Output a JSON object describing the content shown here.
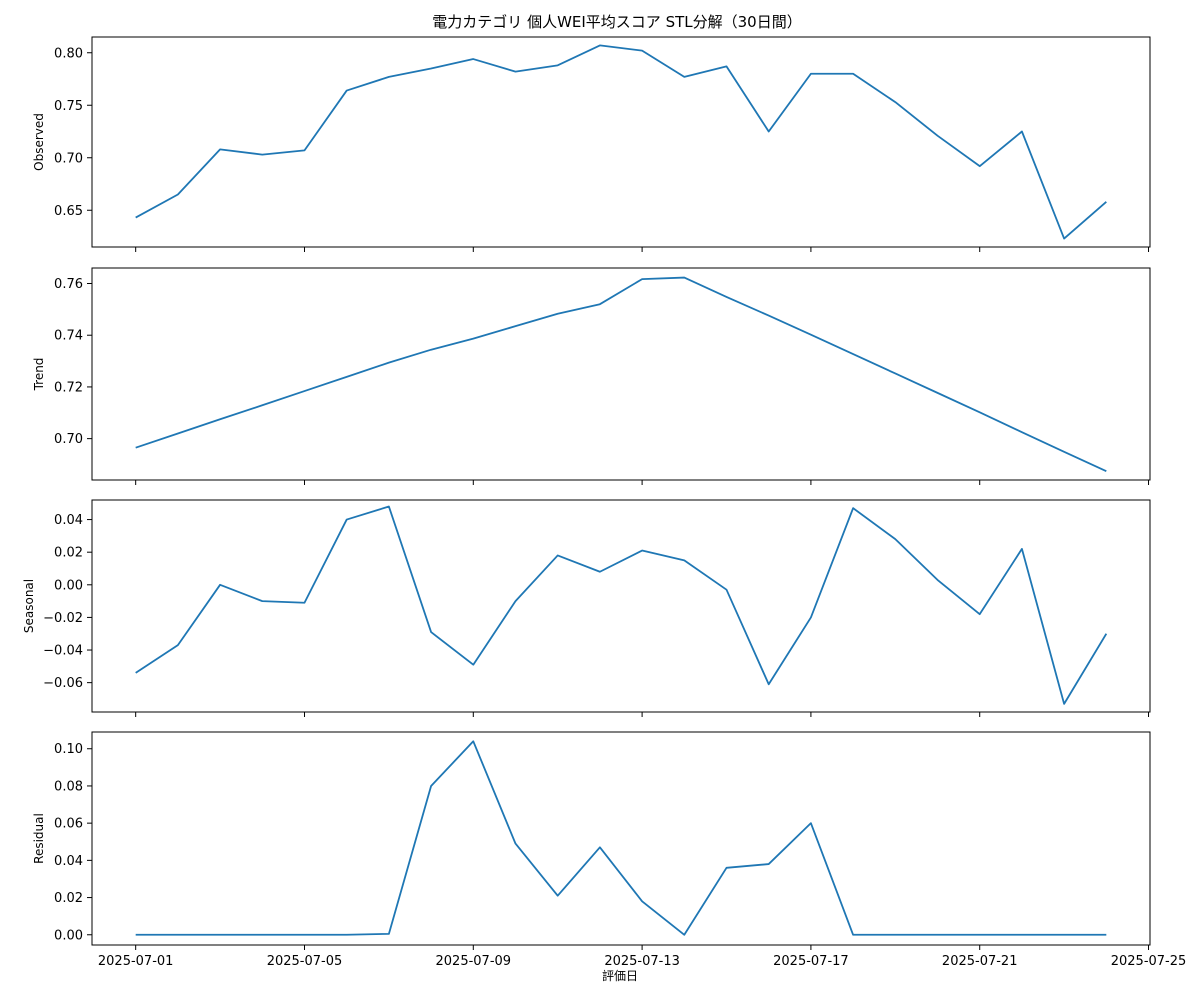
{
  "chart_data": {
    "type": "line",
    "title": "電力カテゴリ 個人WEI平均スコア STL分解（30日間）",
    "xlabel": "評価日",
    "x": [
      "2025-07-01",
      "2025-07-02",
      "2025-07-03",
      "2025-07-04",
      "2025-07-05",
      "2025-07-06",
      "2025-07-07",
      "2025-07-08",
      "2025-07-09",
      "2025-07-10",
      "2025-07-11",
      "2025-07-12",
      "2025-07-13",
      "2025-07-14",
      "2025-07-15",
      "2025-07-16",
      "2025-07-17",
      "2025-07-18",
      "2025-07-19",
      "2025-07-20",
      "2025-07-21",
      "2025-07-22",
      "2025-07-23",
      "2025-07-24"
    ],
    "x_ticks": [
      "2025-07-01",
      "2025-07-05",
      "2025-07-09",
      "2025-07-13",
      "2025-07-17",
      "2025-07-21",
      "2025-07-25"
    ],
    "color": "#1f77b4",
    "panels": [
      {
        "ylabel": "Observed",
        "ylim": [
          0.615,
          0.815
        ],
        "yticks": [
          0.65,
          0.7,
          0.75,
          0.8
        ],
        "ytick_labels": [
          "0.65",
          "0.70",
          "0.75",
          "0.80"
        ],
        "values": [
          0.643,
          0.665,
          0.708,
          0.703,
          0.707,
          0.764,
          0.777,
          0.785,
          0.794,
          0.782,
          0.788,
          0.807,
          0.802,
          0.777,
          0.787,
          0.725,
          0.78,
          0.78,
          0.753,
          0.721,
          0.692,
          0.725,
          0.623,
          0.658
        ]
      },
      {
        "ylabel": "Trend",
        "ylim": [
          0.684,
          0.766
        ],
        "yticks": [
          0.7,
          0.72,
          0.74,
          0.76
        ],
        "ytick_labels": [
          "0.70",
          "0.72",
          "0.74",
          "0.76"
        ],
        "values": [
          0.6965,
          0.702,
          0.7075,
          0.7129,
          0.7184,
          0.7239,
          0.7294,
          0.7344,
          0.7387,
          0.7435,
          0.7483,
          0.752,
          0.7617,
          0.7623,
          0.7548,
          0.7476,
          0.7402,
          0.7327,
          0.7252,
          0.7177,
          0.7102,
          0.7025,
          0.6949,
          0.6874
        ]
      },
      {
        "ylabel": "Seasonal",
        "ylim": [
          -0.078,
          0.052
        ],
        "yticks": [
          -0.06,
          -0.04,
          -0.02,
          0.0,
          0.02,
          0.04
        ],
        "ytick_labels": [
          "−0.06",
          "−0.04",
          "−0.02",
          "0.00",
          "0.02",
          "0.04"
        ],
        "values": [
          -0.054,
          -0.037,
          0.0,
          -0.01,
          -0.011,
          0.04,
          0.048,
          -0.029,
          -0.049,
          -0.01,
          0.018,
          0.008,
          0.021,
          0.015,
          -0.003,
          -0.061,
          -0.02,
          0.047,
          0.028,
          0.003,
          -0.018,
          0.022,
          -0.073,
          -0.03
        ]
      },
      {
        "ylabel": "Residual",
        "ylim": [
          -0.0055,
          0.109
        ],
        "yticks": [
          0.0,
          0.02,
          0.04,
          0.06,
          0.08,
          0.1
        ],
        "ytick_labels": [
          "0.00",
          "0.02",
          "0.04",
          "0.06",
          "0.08",
          "0.10"
        ],
        "values": [
          0.0,
          0.0,
          0.0,
          0.0,
          0.0,
          0.0,
          0.0005,
          0.08,
          0.104,
          0.049,
          0.021,
          0.047,
          0.018,
          0.0,
          0.036,
          0.038,
          0.06,
          0.0,
          0.0,
          0.0,
          0.0,
          0.0,
          0.0,
          0.0
        ]
      }
    ]
  }
}
